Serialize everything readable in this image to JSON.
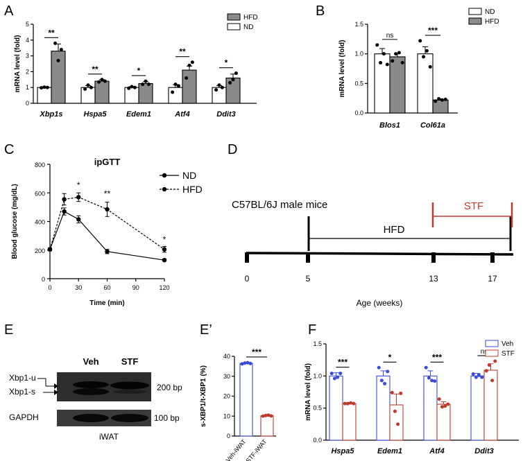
{
  "panels": {
    "A": "A",
    "B": "B",
    "C": "C",
    "D": "D",
    "E": "E",
    "E2": "E’",
    "F": "F"
  },
  "chart_data": [
    {
      "id": "A",
      "type": "bar",
      "ylabel": "mRNA level (fold)",
      "ylim": [
        0,
        5
      ],
      "yticks": [
        "0",
        "1",
        "2",
        "3",
        "4",
        "5"
      ],
      "categories": [
        "Xbp1s",
        "Hspa5",
        "Edem1",
        "Atf4",
        "Ddit3"
      ],
      "series": [
        {
          "name": "ND",
          "color": "#ffffff",
          "values": [
            1.0,
            1.0,
            1.0,
            1.0,
            1.0
          ],
          "err": [
            0.05,
            0.12,
            0.06,
            0.18,
            0.12
          ]
        },
        {
          "name": "HFD",
          "color": "#8a8a8a",
          "values": [
            3.3,
            1.4,
            1.25,
            2.1,
            1.6
          ],
          "err": [
            0.45,
            0.1,
            0.12,
            0.25,
            0.25
          ]
        }
      ],
      "points": [
        [
          [
            0.98,
            1.02,
            1.0
          ],
          [
            3.8,
            2.7,
            3.4
          ]
        ],
        [
          [
            0.9,
            1.15,
            1.0
          ],
          [
            1.35,
            1.5,
            1.4
          ]
        ],
        [
          [
            0.95,
            1.05,
            1.0
          ],
          [
            1.2,
            1.4,
            1.2
          ]
        ],
        [
          [
            0.7,
            1.2,
            1.1
          ],
          [
            1.6,
            2.4,
            2.6
          ]
        ],
        [
          [
            0.85,
            1.15,
            1.0
          ],
          [
            1.3,
            1.5,
            1.9
          ]
        ]
      ],
      "significance": [
        "**",
        "**",
        "*",
        "**",
        "*"
      ],
      "legend": [
        "HFD",
        "ND"
      ]
    },
    {
      "id": "B",
      "type": "bar",
      "ylabel": "mRNA level (fold)",
      "ylim": [
        0,
        1.5
      ],
      "yticks": [
        "0.0",
        "0.5",
        "1.0",
        "1.5"
      ],
      "categories": [
        "Blos1",
        "Col61a"
      ],
      "series": [
        {
          "name": "ND",
          "color": "#ffffff",
          "values": [
            1.0,
            1.0
          ],
          "err": [
            0.09,
            0.12
          ]
        },
        {
          "name": "HFD",
          "color": "#8a8a8a",
          "values": [
            0.95,
            0.22
          ],
          "err": [
            0.06,
            0.02
          ]
        }
      ],
      "points": [
        [
          [
            1.15,
            0.85,
            1.0,
            0.82
          ],
          [
            0.88,
            1.0,
            1.02,
            0.85
          ]
        ],
        [
          [
            1.22,
            0.95,
            1.05,
            0.78
          ],
          [
            0.2,
            0.24,
            0.22,
            0.23
          ]
        ]
      ],
      "significance": [
        "ns",
        "***"
      ],
      "legend": [
        "ND",
        "HFD"
      ]
    },
    {
      "id": "C",
      "type": "line",
      "title": "ipGTT",
      "xlabel": "Time (min)",
      "ylabel": "Blood glucose (mg/dL)",
      "xlim": [
        0,
        120
      ],
      "ylim": [
        0,
        800
      ],
      "xticks": [
        "0",
        "30",
        "60",
        "90",
        "120"
      ],
      "yticks": [
        "0",
        "200",
        "400",
        "600",
        "800"
      ],
      "series": [
        {
          "name": "ND",
          "style": "solid",
          "x": [
            0,
            15,
            30,
            60,
            120
          ],
          "y": [
            205,
            470,
            415,
            190,
            130
          ],
          "err": [
            10,
            25,
            25,
            15,
            8
          ]
        },
        {
          "name": "HFD",
          "style": "dashed",
          "x": [
            0,
            15,
            30,
            60,
            120
          ],
          "y": [
            205,
            555,
            570,
            485,
            205
          ],
          "err": [
            10,
            40,
            30,
            50,
            20
          ]
        }
      ],
      "annotations": [
        {
          "x": 30,
          "y": 635,
          "text": "*"
        },
        {
          "x": 60,
          "y": 575,
          "text": "**"
        },
        {
          "x": 120,
          "y": 255,
          "text": "*"
        }
      ]
    },
    {
      "id": "E2",
      "type": "bar",
      "ylabel": "s-XBP1/t-XBP1 (%)",
      "ylim": [
        0,
        40
      ],
      "yticks": [
        "0",
        "10",
        "20",
        "30",
        "40"
      ],
      "categories": [
        "Veh-iWAT",
        "STF-iWAT"
      ],
      "series": [
        {
          "name": "",
          "colors": [
            "#3a4bd6",
            "#c0392b"
          ],
          "values": [
            36.5,
            10.2
          ],
          "err": [
            0.4,
            0.3
          ]
        }
      ],
      "points": [
        [
          36.2,
          36.6,
          36.8,
          36.4
        ],
        [
          10.0,
          10.3,
          10.5,
          10.1
        ]
      ],
      "significance": [
        "***"
      ]
    },
    {
      "id": "F",
      "type": "bar",
      "ylabel": "mRNA level (fold)",
      "ylim": [
        0,
        1.5
      ],
      "yticks": [
        "0.0",
        "0.5",
        "1.0",
        "1.5"
      ],
      "categories": [
        "Hspa5",
        "Edem1",
        "Atf4",
        "Ddit3"
      ],
      "series": [
        {
          "name": "Veh",
          "color": "#3a4bd6",
          "values": [
            1.0,
            1.0,
            1.0,
            1.0
          ],
          "err": [
            0.05,
            0.08,
            0.08,
            0.04
          ]
        },
        {
          "name": "STF",
          "color": "#c0392b",
          "values": [
            0.57,
            0.55,
            0.56,
            1.09
          ],
          "err": [
            0.01,
            0.17,
            0.04,
            0.1
          ]
        }
      ],
      "points": [
        [
          [
            1.04,
            0.96,
            0.98,
            1.04
          ],
          [
            0.57,
            0.57,
            0.58,
            0.57
          ]
        ],
        [
          [
            1.13,
            0.93,
            0.88,
            1.07
          ],
          [
            0.74,
            0.45,
            0.25,
            0.73
          ]
        ],
        [
          [
            1.13,
            0.97,
            0.93,
            0.92
          ],
          [
            0.64,
            0.52,
            0.53,
            0.56
          ]
        ],
        [
          [
            1.03,
            0.98,
            1.01,
            0.98
          ],
          [
            1.08,
            1.17,
            0.93,
            1.23
          ]
        ]
      ],
      "significance": [
        "***",
        "*",
        "***",
        "ns"
      ],
      "legend": [
        "Veh",
        "STF"
      ]
    }
  ],
  "timeline": {
    "strain": "C57BL/6J male mice",
    "hfd_label": "HFD",
    "stf_label": "STF",
    "ticks": [
      "0",
      "5",
      "13",
      "17"
    ],
    "axis_label": "Age (weeks)",
    "stf_color": "#c0392b"
  },
  "blot": {
    "lane_labels": [
      "Veh",
      "STF"
    ],
    "band_labels": [
      "Xbp1-u",
      "Xbp1-s"
    ],
    "size_top": "200 bp",
    "loading_label": "GAPDH",
    "size_bottom": "100 bp",
    "tissue": "iWAT"
  }
}
